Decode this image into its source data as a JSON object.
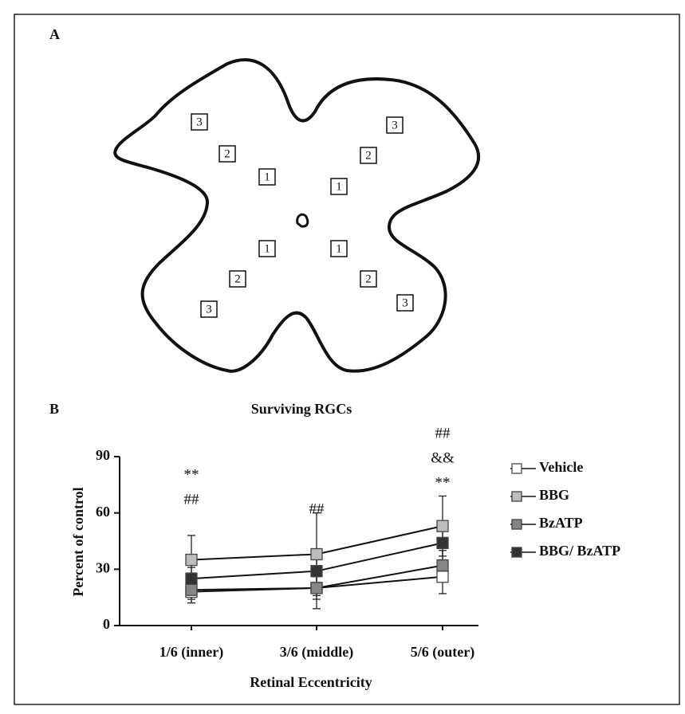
{
  "panel_a": {
    "label": "A",
    "boxes": [
      "3",
      "2",
      "1",
      "3",
      "2",
      "1",
      "1",
      "1",
      "2",
      "2",
      "3",
      "3"
    ]
  },
  "panel_b": {
    "label": "B"
  },
  "chart_data": {
    "type": "line",
    "title": "Surviving RGCs",
    "y_label": "Percent of control",
    "x_label": "Retinal Eccentricity",
    "categories": [
      "1/6 (inner)",
      "3/6 (middle)",
      "5/6 (outer)"
    ],
    "series": [
      {
        "name": "Vehicle",
        "color": "#ffffff",
        "values": [
          18,
          20,
          26
        ],
        "errors": [
          6,
          11,
          9
        ]
      },
      {
        "name": "BBG",
        "color": "#bdbdbd",
        "values": [
          35,
          38,
          53
        ],
        "errors": [
          13,
          22,
          16
        ]
      },
      {
        "name": "BzATP",
        "color": "#858585",
        "values": [
          19,
          20,
          32
        ],
        "errors": [
          5,
          6,
          8
        ]
      },
      {
        "name": "BBG/ BzATP",
        "color": "#333333",
        "values": [
          25,
          29,
          44
        ],
        "errors": [
          6,
          8,
          9
        ]
      }
    ],
    "annotations": [
      [
        "**",
        "##"
      ],
      [
        "##"
      ],
      [
        "##",
        "&&",
        "**"
      ]
    ],
    "ylim": [
      0,
      90
    ],
    "yticks": [
      0,
      30,
      60,
      90
    ],
    "grid": false
  }
}
